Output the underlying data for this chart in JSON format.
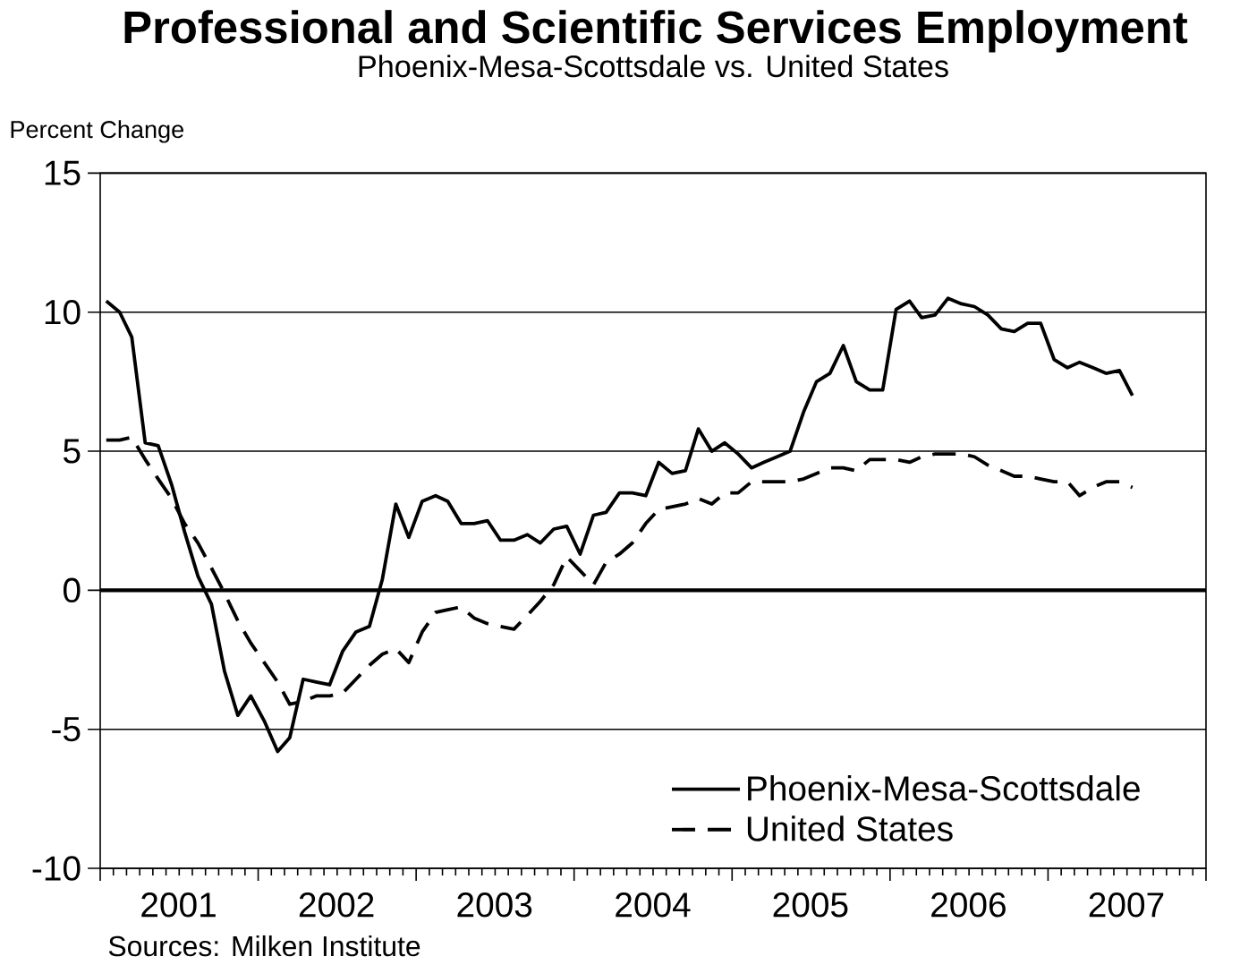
{
  "chart_data": {
    "type": "line",
    "title": "Professional and Scientific Services Employment",
    "subtitle": "Phoenix-Mesa-Scottsdale vs. United States",
    "ylabel": "Percent Change",
    "annotations": [
      "Sources: Milken Institute"
    ],
    "x": [
      "2001-01-15",
      "2001-02-15",
      "2001-03-15",
      "2001-04-15",
      "2001-05-15",
      "2001-06-15",
      "2001-07-15",
      "2001-08-15",
      "2001-09-15",
      "2001-10-15",
      "2001-11-15",
      "2001-12-15",
      "2002-01-15",
      "2002-02-15",
      "2002-03-15",
      "2002-04-15",
      "2002-05-15",
      "2002-06-15",
      "2002-07-15",
      "2002-08-15",
      "2002-09-15",
      "2002-10-15",
      "2002-11-15",
      "2002-12-15",
      "2003-01-15",
      "2003-02-15",
      "2003-03-15",
      "2003-04-15",
      "2003-05-15",
      "2003-06-15",
      "2003-07-15",
      "2003-08-15",
      "2003-09-15",
      "2003-10-15",
      "2003-11-15",
      "2003-12-15",
      "2004-01-15",
      "2004-02-15",
      "2004-03-15",
      "2004-04-15",
      "2004-05-15",
      "2004-06-15",
      "2004-07-15",
      "2004-08-15",
      "2004-09-15",
      "2004-10-15",
      "2004-11-15",
      "2004-12-15",
      "2005-01-15",
      "2005-02-15",
      "2005-03-15",
      "2005-04-15",
      "2005-05-15",
      "2005-06-15",
      "2005-07-15",
      "2005-08-15",
      "2005-09-15",
      "2005-10-15",
      "2005-11-15",
      "2005-12-15",
      "2006-01-15",
      "2006-02-15",
      "2006-03-15",
      "2006-04-15",
      "2006-05-15",
      "2006-06-15",
      "2006-07-15",
      "2006-08-15",
      "2006-09-15",
      "2006-10-15",
      "2006-11-15",
      "2006-12-15",
      "2007-01-15",
      "2007-02-15",
      "2007-03-15",
      "2007-04-15",
      "2007-05-15",
      "2007-06-15",
      "2007-07-15"
    ],
    "series": [
      {
        "name": "Phoenix-Mesa-Scottsdale",
        "color": "#000000",
        "line_style": "solid",
        "values": [
          10.4,
          10.0,
          9.1,
          5.3,
          5.2,
          3.8,
          2.1,
          0.5,
          -0.5,
          -2.9,
          -4.5,
          -3.8,
          -4.7,
          -5.8,
          -5.3,
          -3.2,
          -3.3,
          -3.4,
          -2.2,
          -1.5,
          -1.3,
          0.4,
          3.1,
          1.9,
          3.2,
          3.4,
          3.2,
          2.4,
          2.4,
          2.5,
          1.8,
          1.8,
          2.0,
          1.7,
          2.2,
          2.3,
          1.3,
          2.7,
          2.8,
          3.5,
          3.5,
          3.4,
          4.6,
          4.2,
          4.3,
          5.8,
          5.0,
          5.3,
          4.9,
          4.4,
          4.6,
          4.8,
          5.0,
          6.4,
          7.5,
          7.8,
          8.8,
          7.5,
          7.2,
          7.2,
          10.1,
          10.4,
          9.8,
          9.9,
          10.5,
          10.3,
          10.2,
          9.9,
          9.4,
          9.3,
          9.6,
          9.6,
          8.3,
          8.0,
          8.2,
          8.0,
          7.8,
          7.9,
          7.0
        ]
      },
      {
        "name": "United States",
        "color": "#000000",
        "line_style": "dashed",
        "values": [
          5.4,
          5.4,
          5.5,
          4.7,
          4.0,
          3.3,
          2.4,
          1.7,
          0.8,
          -0.1,
          -1.1,
          -1.9,
          -2.6,
          -3.3,
          -4.1,
          -4.0,
          -3.8,
          -3.8,
          -3.7,
          -3.2,
          -2.7,
          -2.3,
          -2.1,
          -2.6,
          -1.5,
          -0.8,
          -0.7,
          -0.6,
          -1.0,
          -1.2,
          -1.3,
          -1.4,
          -0.9,
          -0.4,
          0.2,
          1.2,
          0.7,
          0.2,
          1.0,
          1.3,
          1.7,
          2.4,
          2.9,
          3.0,
          3.1,
          3.3,
          3.1,
          3.5,
          3.5,
          3.9,
          3.9,
          3.9,
          3.9,
          4.0,
          4.2,
          4.4,
          4.4,
          4.3,
          4.7,
          4.7,
          4.7,
          4.6,
          4.8,
          4.9,
          4.9,
          4.9,
          4.8,
          4.5,
          4.3,
          4.1,
          4.1,
          4.0,
          3.9,
          3.9,
          3.4,
          3.7,
          3.9,
          3.9,
          3.7
        ]
      }
    ],
    "xlim": [
      "2001-01-01",
      "2008-01-01"
    ],
    "xticks": [
      {
        "value": "2001-01-01",
        "label": null
      },
      {
        "value": "2001-07-01",
        "label": "2001"
      },
      {
        "value": "2002-01-01",
        "label": null
      },
      {
        "value": "2002-07-01",
        "label": "2002"
      },
      {
        "value": "2003-01-01",
        "label": null
      },
      {
        "value": "2003-07-01",
        "label": "2003"
      },
      {
        "value": "2004-01-01",
        "label": null
      },
      {
        "value": "2004-07-01",
        "label": "2004"
      },
      {
        "value": "2005-01-01",
        "label": null
      },
      {
        "value": "2005-07-01",
        "label": "2005"
      },
      {
        "value": "2006-01-01",
        "label": null
      },
      {
        "value": "2006-07-01",
        "label": "2006"
      },
      {
        "value": "2007-01-01",
        "label": null
      },
      {
        "value": "2007-07-01",
        "label": "2007"
      },
      {
        "value": "2008-01-01",
        "label": null
      }
    ],
    "ylim": [
      -10,
      15
    ],
    "yticks": [
      -10,
      -5,
      0,
      5,
      10,
      15
    ],
    "grid": "y",
    "legend": "bottom right",
    "ref_lines": [
      {
        "axis": "y",
        "value": 0
      }
    ]
  }
}
